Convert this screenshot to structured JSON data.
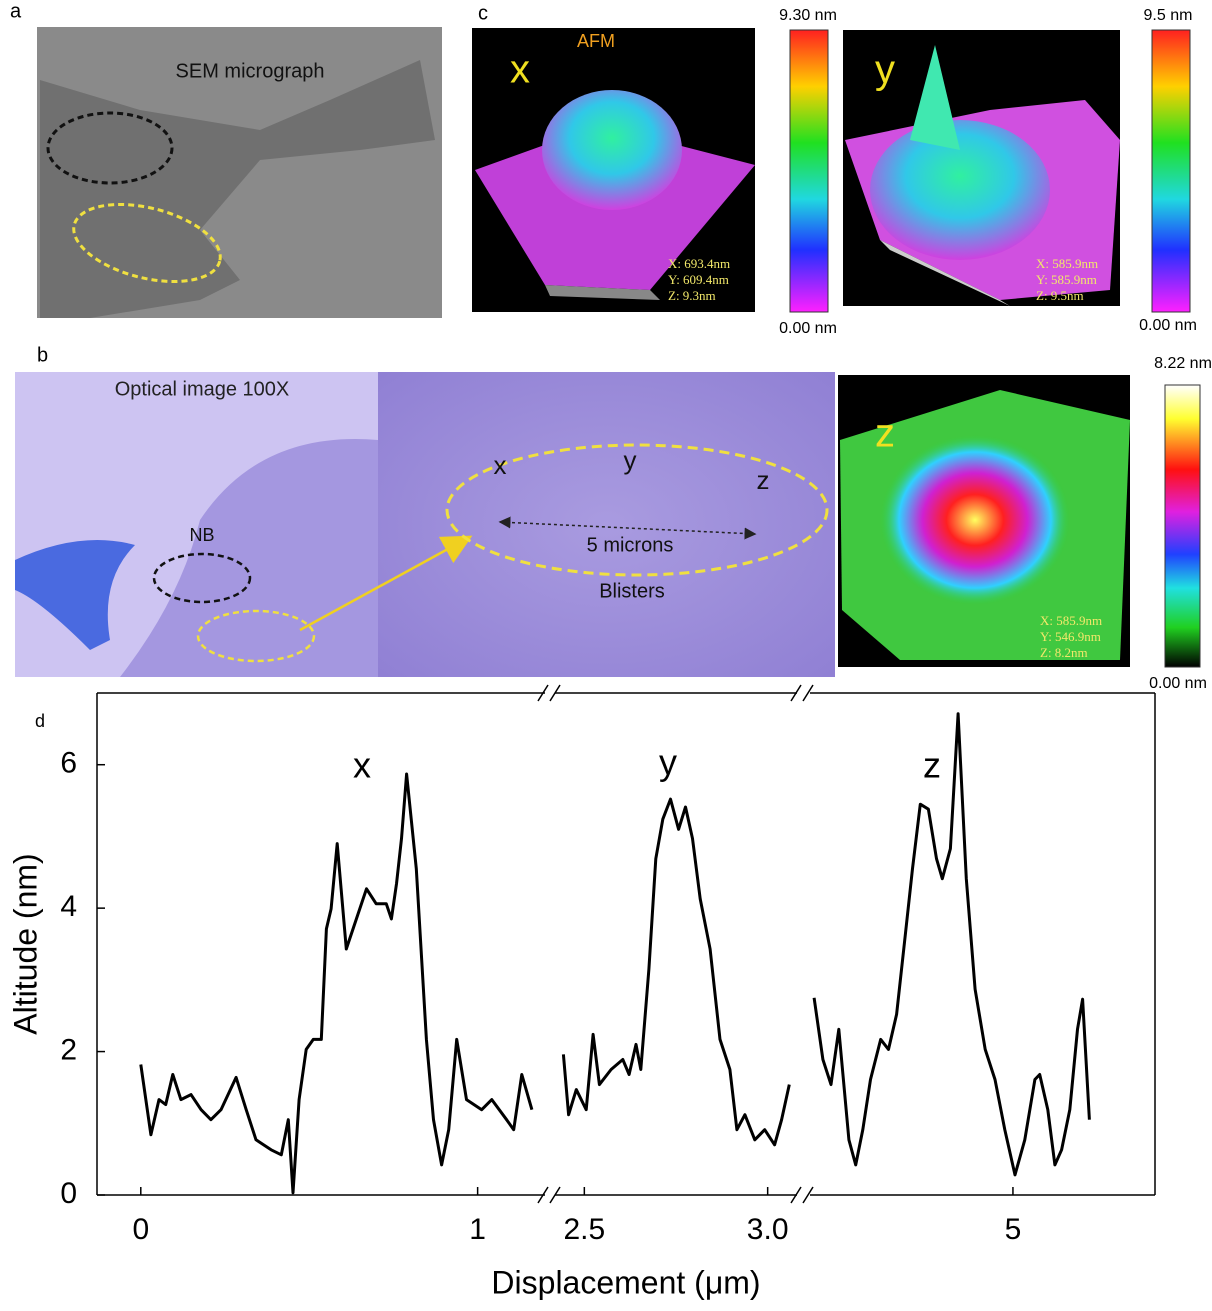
{
  "panels": {
    "a": {
      "label": "a",
      "title": "SEM micrograph"
    },
    "c": {
      "label": "c",
      "title": "AFM",
      "images": [
        {
          "label": "x",
          "info": [
            "X: 693.4nm",
            "Y: 609.4nm",
            "Z: 9.3nm"
          ],
          "scale_max": "9.30 nm",
          "scale_min": "0.00 nm"
        },
        {
          "label": "y",
          "info": [
            "X: 585.9nm",
            "Y: 585.9nm",
            "Z: 9.5nm"
          ],
          "scale_max": "9.5 nm",
          "scale_min": "0.00 nm"
        }
      ]
    },
    "b": {
      "label": "b",
      "title": "Optical image 100X",
      "region_label": "NB",
      "points": [
        "x",
        "y",
        "z"
      ],
      "scale_bar": "5 microns",
      "caption": "Blisters",
      "afm": {
        "label": "z",
        "info": [
          "X: 585.9nm",
          "Y: 546.9nm",
          "Z: 8.2nm"
        ],
        "scale_max": "8.22 nm",
        "scale_min": "0.00 nm"
      }
    }
  },
  "chart_data": {
    "type": "line",
    "label": "d",
    "xlabel": "Displacement (μm)",
    "ylabel": "Altitude (nm)",
    "ylim": [
      0,
      7
    ],
    "yticks": [
      0,
      2,
      4,
      6
    ],
    "color": "#000000",
    "peak_labels": [
      "x",
      "y",
      "z"
    ],
    "segments": [
      {
        "xlim": [
          -0.13,
          1.2
        ],
        "xticks": [
          0,
          1
        ],
        "x": [
          0,
          0.03,
          0.054,
          0.074,
          0.095,
          0.119,
          0.149,
          0.179,
          0.208,
          0.238,
          0.283,
          0.313,
          0.342,
          0.387,
          0.417,
          0.438,
          0.452,
          0.47,
          0.491,
          0.512,
          0.536,
          0.551,
          0.565,
          0.583,
          0.61,
          0.64,
          0.67,
          0.699,
          0.729,
          0.744,
          0.759,
          0.774,
          0.789,
          0.818,
          0.848,
          0.869,
          0.893,
          0.914,
          0.938,
          0.967,
          1.012,
          1.042,
          1.086,
          1.107,
          1.131,
          1.161
        ],
        "values": [
          1.82,
          0.84,
          1.33,
          1.26,
          1.68,
          1.33,
          1.4,
          1.19,
          1.05,
          1.19,
          1.64,
          1.19,
          0.77,
          0.63,
          0.56,
          1.05,
          0.03,
          1.33,
          2.03,
          2.17,
          2.17,
          3.71,
          3.99,
          4.9,
          3.43,
          3.85,
          4.27,
          4.06,
          4.06,
          3.85,
          4.34,
          4.97,
          5.87,
          4.55,
          2.17,
          1.05,
          0.42,
          0.91,
          2.17,
          1.33,
          1.19,
          1.33,
          1.05,
          0.91,
          1.68,
          1.19
        ]
      },
      {
        "xlim": [
          2.42,
          3.08
        ],
        "xticks": [
          2.5,
          {
            "value": 3,
            "label": "3.0"
          }
        ],
        "x": [
          2.443,
          2.457,
          2.478,
          2.505,
          2.524,
          2.541,
          2.573,
          2.605,
          2.622,
          2.641,
          2.654,
          2.676,
          2.695,
          2.714,
          2.735,
          2.757,
          2.776,
          2.795,
          2.816,
          2.843,
          2.87,
          2.897,
          2.916,
          2.938,
          2.965,
          2.992,
          3.019,
          3.038,
          3.059
        ],
        "values": [
          1.96,
          1.12,
          1.47,
          1.19,
          2.24,
          1.54,
          1.75,
          1.89,
          1.68,
          2.1,
          1.75,
          3.15,
          4.69,
          5.24,
          5.52,
          5.1,
          5.41,
          4.97,
          4.13,
          3.43,
          2.17,
          1.75,
          0.91,
          1.12,
          0.77,
          0.91,
          0.7,
          1.05,
          1.54
        ]
      },
      {
        "xlim": [
          4.4,
          5.42
        ],
        "xticks": [
          5
        ],
        "x": [
          4.412,
          4.438,
          4.462,
          4.485,
          4.515,
          4.535,
          4.556,
          4.579,
          4.609,
          4.632,
          4.656,
          4.682,
          4.703,
          4.726,
          4.75,
          4.774,
          4.791,
          4.815,
          4.838,
          4.862,
          4.888,
          4.918,
          4.947,
          4.976,
          5.006,
          5.035,
          5.065,
          5.079,
          5.103,
          5.124,
          5.144,
          5.168,
          5.191,
          5.206,
          5.226
        ],
        "values": [
          2.75,
          1.89,
          1.54,
          2.31,
          0.77,
          0.42,
          0.91,
          1.61,
          2.17,
          2.03,
          2.52,
          3.64,
          4.55,
          5.45,
          5.38,
          4.69,
          4.41,
          4.83,
          6.71,
          4.41,
          2.87,
          2.03,
          1.61,
          0.91,
          0.28,
          0.77,
          1.61,
          1.68,
          1.19,
          0.42,
          0.63,
          1.19,
          2.31,
          2.73,
          1.05
        ]
      }
    ]
  }
}
